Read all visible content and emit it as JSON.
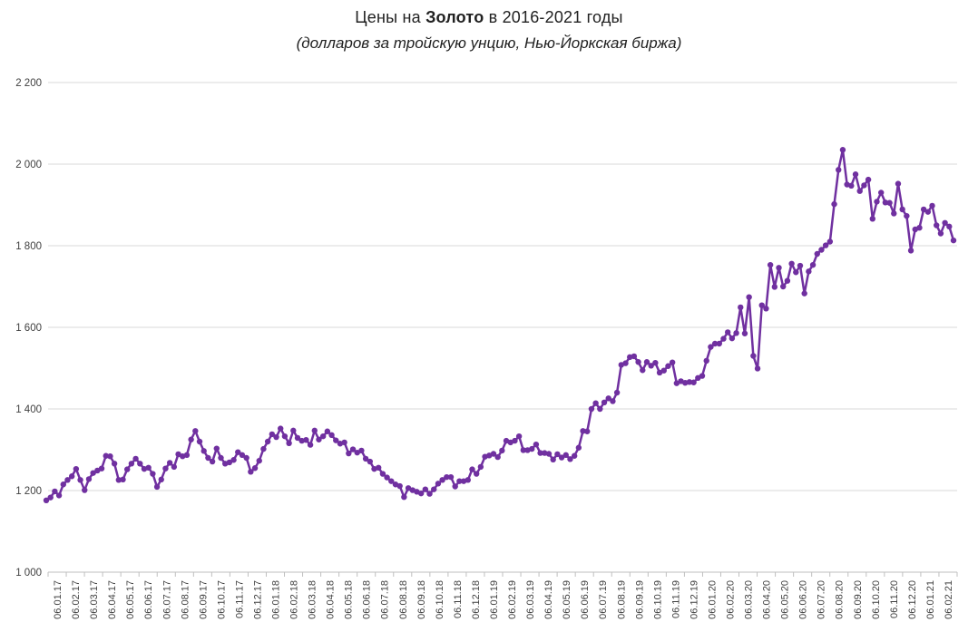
{
  "chart_data": {
    "type": "line",
    "title": "Цены на Золото в 2016-2021 годы",
    "title_parts": {
      "prefix": "Цены на ",
      "bold": "Золото",
      "suffix": " в 2016-2021 годы"
    },
    "subtitle": "(долларов за тройскую унцию, Нью-Йоркская биржа)",
    "legend": "none",
    "grid": "horizontal",
    "marker": "circle",
    "values_granularity": "weekly",
    "x_labels_granularity": "monthly",
    "ylim": [
      1000,
      2200
    ],
    "y_tick_step": 200,
    "y_tick_labels": [
      "1 000",
      "1 200",
      "1 400",
      "1 600",
      "1 800",
      "2 000",
      "2 200"
    ],
    "x_labels": [
      "06.01.17",
      "06.02.17",
      "06.03.17",
      "06.04.17",
      "06.05.17",
      "06.06.17",
      "06.07.17",
      "06.08.17",
      "06.09.17",
      "06.10.17",
      "06.11.17",
      "06.12.17",
      "06.01.18",
      "06.02.18",
      "06.03.18",
      "06.04.18",
      "06.05.18",
      "06.06.18",
      "06.07.18",
      "06.08.18",
      "06.09.18",
      "06.10.18",
      "06.11.18",
      "06.12.18",
      "06.01.19",
      "06.02.19",
      "06.03.19",
      "06.04.19",
      "06.05.19",
      "06.06.19",
      "06.07.19",
      "06.08.19",
      "06.09.19",
      "06.10.19",
      "06.11.19",
      "06.12.19",
      "06.01.20",
      "06.02.20",
      "06.03.20",
      "06.04.20",
      "06.05.20",
      "06.06.20",
      "06.07.20",
      "06.08.20",
      "06.09.20",
      "06.10.20",
      "06.11.20",
      "06.12.20",
      "06.01.21",
      "06.02.21"
    ],
    "values": [
      1176,
      1183,
      1198,
      1188,
      1215,
      1226,
      1235,
      1253,
      1226,
      1201,
      1228,
      1243,
      1249,
      1254,
      1285,
      1284,
      1266,
      1226,
      1227,
      1252,
      1266,
      1278,
      1266,
      1253,
      1256,
      1241,
      1209,
      1227,
      1254,
      1268,
      1258,
      1289,
      1284,
      1287,
      1325,
      1346,
      1320,
      1297,
      1280,
      1271,
      1303,
      1280,
      1266,
      1269,
      1275,
      1294,
      1287,
      1280,
      1246,
      1255,
      1273,
      1302,
      1320,
      1338,
      1331,
      1352,
      1333,
      1316,
      1347,
      1329,
      1322,
      1324,
      1312,
      1347,
      1325,
      1333,
      1345,
      1336,
      1323,
      1315,
      1318,
      1291,
      1301,
      1293,
      1298,
      1278,
      1271,
      1253,
      1256,
      1241,
      1232,
      1223,
      1215,
      1211,
      1184,
      1206,
      1201,
      1197,
      1193,
      1203,
      1192,
      1203,
      1217,
      1226,
      1233,
      1233,
      1210,
      1223,
      1223,
      1226,
      1252,
      1241,
      1258,
      1283,
      1286,
      1290,
      1282,
      1298,
      1322,
      1318,
      1322,
      1333,
      1299,
      1299,
      1302,
      1313,
      1292,
      1292,
      1290,
      1276,
      1289,
      1281,
      1287,
      1277,
      1285,
      1305,
      1346,
      1345,
      1400,
      1414,
      1400,
      1416,
      1426,
      1419,
      1440,
      1508,
      1512,
      1527,
      1529,
      1515,
      1495,
      1515,
      1506,
      1513,
      1489,
      1494,
      1505,
      1514,
      1463,
      1468,
      1464,
      1466,
      1465,
      1476,
      1481,
      1518,
      1552,
      1560,
      1560,
      1572,
      1588,
      1573,
      1586,
      1649,
      1585,
      1674,
      1530,
      1499,
      1654,
      1646,
      1753,
      1699,
      1746,
      1700,
      1714,
      1756,
      1735,
      1751,
      1683,
      1737,
      1753,
      1780,
      1790,
      1801,
      1810,
      1902,
      1986,
      2035,
      1950,
      1947,
      1975,
      1934,
      1948,
      1962,
      1866,
      1908,
      1930,
      1906,
      1905,
      1879,
      1952,
      1889,
      1873,
      1788,
      1840,
      1844,
      1889,
      1883,
      1898,
      1850,
      1830,
      1856,
      1847,
      1813
    ],
    "colors": {
      "line": "#7030A0",
      "grid": "#D9D9D9",
      "axis": "#BFBFBF",
      "title_text": "#212121",
      "tick_text": "#404040",
      "background": "#FFFFFF"
    }
  }
}
